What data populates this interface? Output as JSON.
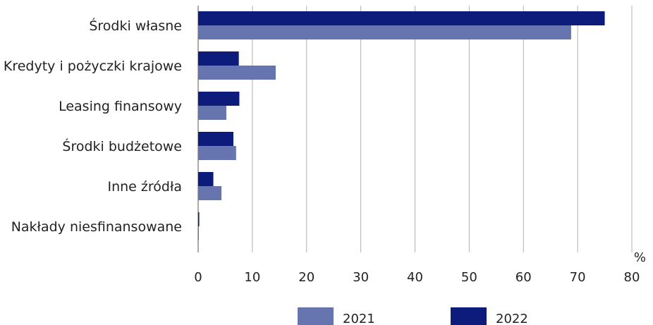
{
  "chart_data": {
    "type": "bar",
    "orientation": "horizontal",
    "categories": [
      "Środki własne",
      "Kredyty i pożyczki krajowe",
      "Leasing finansowy",
      "Środki budżetowe",
      "Inne źródła",
      "Nakłady niesfinansowane"
    ],
    "series": [
      {
        "name": "2022",
        "color": "#0d1b7a",
        "values": [
          75.0,
          7.5,
          7.6,
          6.5,
          2.8,
          0.2
        ]
      },
      {
        "name": "2021",
        "color": "#6674b0",
        "values": [
          68.8,
          14.3,
          5.2,
          7.0,
          4.3,
          0.1
        ]
      }
    ],
    "unit_label": "%",
    "xlim": [
      0,
      80
    ],
    "xticks": [
      0,
      10,
      20,
      30,
      40,
      50,
      60,
      70,
      80
    ],
    "grid": "vertical",
    "legend": {
      "position": "bottom",
      "items": [
        {
          "name": "2021",
          "color": "#6674b0"
        },
        {
          "name": "2022",
          "color": "#0d1b7a"
        }
      ]
    }
  }
}
